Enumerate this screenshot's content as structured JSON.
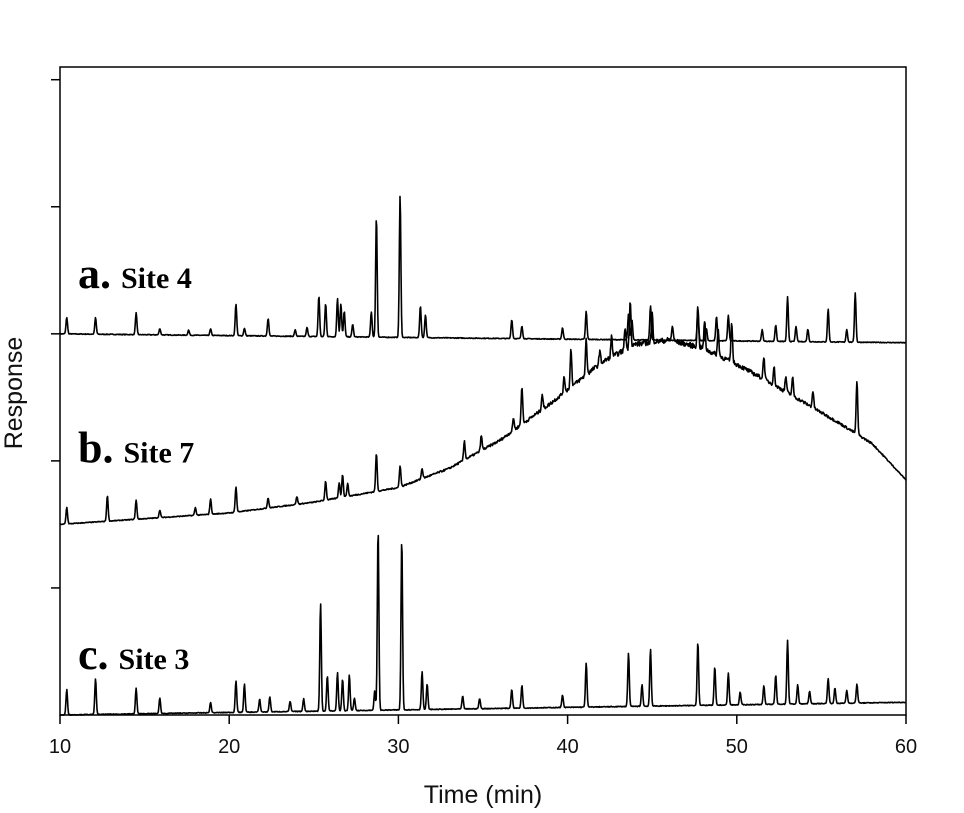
{
  "chart_data": {
    "type": "line",
    "xlabel": "Time (min)",
    "ylabel": "Response",
    "xlim": [
      10,
      60
    ],
    "x_ticks": [
      10,
      20,
      30,
      40,
      50,
      60
    ],
    "x_tick_labels": [
      "10",
      "20",
      "30",
      "40",
      "50",
      "60"
    ],
    "y_ticks": [
      1,
      2,
      3,
      4,
      5
    ],
    "ylim": [
      0,
      5.1
    ],
    "grid": false,
    "legend": "none",
    "line_color": "#000000",
    "series": [
      {
        "id": "trace-a",
        "letter": "a.",
        "name": "Site 4",
        "baseline_start": 3.0,
        "baseline_end": 2.93,
        "hump": [],
        "peaks": [
          [
            10.4,
            0.13
          ],
          [
            12.1,
            0.13
          ],
          [
            14.5,
            0.17
          ],
          [
            15.9,
            0.05
          ],
          [
            17.6,
            0.04
          ],
          [
            18.9,
            0.05
          ],
          [
            20.4,
            0.25
          ],
          [
            20.9,
            0.06
          ],
          [
            22.3,
            0.14
          ],
          [
            23.9,
            0.05
          ],
          [
            24.6,
            0.07
          ],
          [
            25.3,
            0.32
          ],
          [
            25.7,
            0.26
          ],
          [
            26.4,
            0.3
          ],
          [
            26.6,
            0.26
          ],
          [
            26.8,
            0.2
          ],
          [
            27.3,
            0.1
          ],
          [
            28.4,
            0.2
          ],
          [
            28.7,
            0.95
          ],
          [
            30.1,
            1.12
          ],
          [
            31.3,
            0.25
          ],
          [
            31.6,
            0.18
          ],
          [
            36.7,
            0.15
          ],
          [
            37.3,
            0.1
          ],
          [
            39.7,
            0.09
          ],
          [
            41.1,
            0.22
          ],
          [
            43.6,
            0.2
          ],
          [
            43.8,
            0.16
          ],
          [
            44.9,
            0.27
          ],
          [
            47.7,
            0.25
          ],
          [
            48.2,
            0.1
          ],
          [
            48.8,
            0.19
          ],
          [
            49.5,
            0.2
          ],
          [
            51.5,
            0.09
          ],
          [
            52.3,
            0.13
          ],
          [
            53.0,
            0.35
          ],
          [
            53.5,
            0.12
          ],
          [
            54.2,
            0.1
          ],
          [
            55.4,
            0.26
          ],
          [
            56.5,
            0.1
          ],
          [
            57.0,
            0.39
          ]
        ]
      },
      {
        "id": "trace-b",
        "letter": "b.",
        "name": "Site 7",
        "baseline_start": 1.5,
        "baseline_end": 1.85,
        "hump": [
          [
            10,
            0.0
          ],
          [
            20,
            0.02
          ],
          [
            25,
            0.07
          ],
          [
            30,
            0.15
          ],
          [
            33,
            0.28
          ],
          [
            36,
            0.48
          ],
          [
            39,
            0.75
          ],
          [
            42,
            1.05
          ],
          [
            44,
            1.18
          ],
          [
            46,
            1.2
          ],
          [
            48,
            1.12
          ],
          [
            50,
            0.98
          ],
          [
            52,
            0.82
          ],
          [
            54,
            0.65
          ],
          [
            56,
            0.48
          ],
          [
            58,
            0.3
          ],
          [
            60,
            0.0
          ]
        ],
        "peaks": [
          [
            10.4,
            0.13
          ],
          [
            12.8,
            0.2
          ],
          [
            14.5,
            0.15
          ],
          [
            15.9,
            0.06
          ],
          [
            18.0,
            0.06
          ],
          [
            18.9,
            0.12
          ],
          [
            20.4,
            0.2
          ],
          [
            22.3,
            0.08
          ],
          [
            24.0,
            0.06
          ],
          [
            25.7,
            0.15
          ],
          [
            26.5,
            0.12
          ],
          [
            26.7,
            0.18
          ],
          [
            27.0,
            0.1
          ],
          [
            28.7,
            0.3
          ],
          [
            30.1,
            0.17
          ],
          [
            31.4,
            0.08
          ],
          [
            33.9,
            0.15
          ],
          [
            34.9,
            0.12
          ],
          [
            36.8,
            0.1
          ],
          [
            37.3,
            0.3
          ],
          [
            38.5,
            0.12
          ],
          [
            39.8,
            0.12
          ],
          [
            40.2,
            0.3
          ],
          [
            41.1,
            0.28
          ],
          [
            41.9,
            0.1
          ],
          [
            42.6,
            0.16
          ],
          [
            43.4,
            0.18
          ],
          [
            43.7,
            0.38
          ],
          [
            45.0,
            0.22
          ],
          [
            46.2,
            0.12
          ],
          [
            47.7,
            0.32
          ],
          [
            48.1,
            0.22
          ],
          [
            48.9,
            0.2
          ],
          [
            49.7,
            0.32
          ],
          [
            51.6,
            0.18
          ],
          [
            52.2,
            0.14
          ],
          [
            52.9,
            0.12
          ],
          [
            53.3,
            0.14
          ],
          [
            54.5,
            0.13
          ],
          [
            57.1,
            0.42
          ]
        ]
      },
      {
        "id": "trace-c",
        "letter": "c.",
        "name": "Site 3",
        "baseline_start": 0.0,
        "baseline_end": 0.1,
        "hump": [],
        "peaks": [
          [
            10.4,
            0.2
          ],
          [
            12.1,
            0.28
          ],
          [
            14.5,
            0.2
          ],
          [
            15.9,
            0.12
          ],
          [
            18.9,
            0.08
          ],
          [
            20.4,
            0.25
          ],
          [
            20.9,
            0.22
          ],
          [
            21.8,
            0.1
          ],
          [
            22.4,
            0.12
          ],
          [
            23.6,
            0.08
          ],
          [
            24.4,
            0.1
          ],
          [
            25.4,
            0.85
          ],
          [
            25.8,
            0.28
          ],
          [
            26.4,
            0.3
          ],
          [
            26.7,
            0.25
          ],
          [
            27.1,
            0.28
          ],
          [
            27.4,
            0.1
          ],
          [
            28.6,
            0.15
          ],
          [
            28.8,
            1.43
          ],
          [
            30.2,
            1.35
          ],
          [
            31.4,
            0.3
          ],
          [
            31.7,
            0.2
          ],
          [
            33.8,
            0.1
          ],
          [
            34.8,
            0.08
          ],
          [
            36.7,
            0.15
          ],
          [
            37.3,
            0.18
          ],
          [
            39.7,
            0.1
          ],
          [
            41.1,
            0.35
          ],
          [
            43.6,
            0.42
          ],
          [
            44.4,
            0.17
          ],
          [
            44.9,
            0.45
          ],
          [
            47.7,
            0.5
          ],
          [
            48.7,
            0.3
          ],
          [
            49.5,
            0.25
          ],
          [
            50.2,
            0.1
          ],
          [
            51.6,
            0.15
          ],
          [
            52.3,
            0.23
          ],
          [
            53.0,
            0.5
          ],
          [
            53.6,
            0.15
          ],
          [
            54.3,
            0.1
          ],
          [
            55.4,
            0.2
          ],
          [
            55.8,
            0.12
          ],
          [
            56.5,
            0.1
          ],
          [
            57.1,
            0.15
          ]
        ]
      }
    ]
  }
}
